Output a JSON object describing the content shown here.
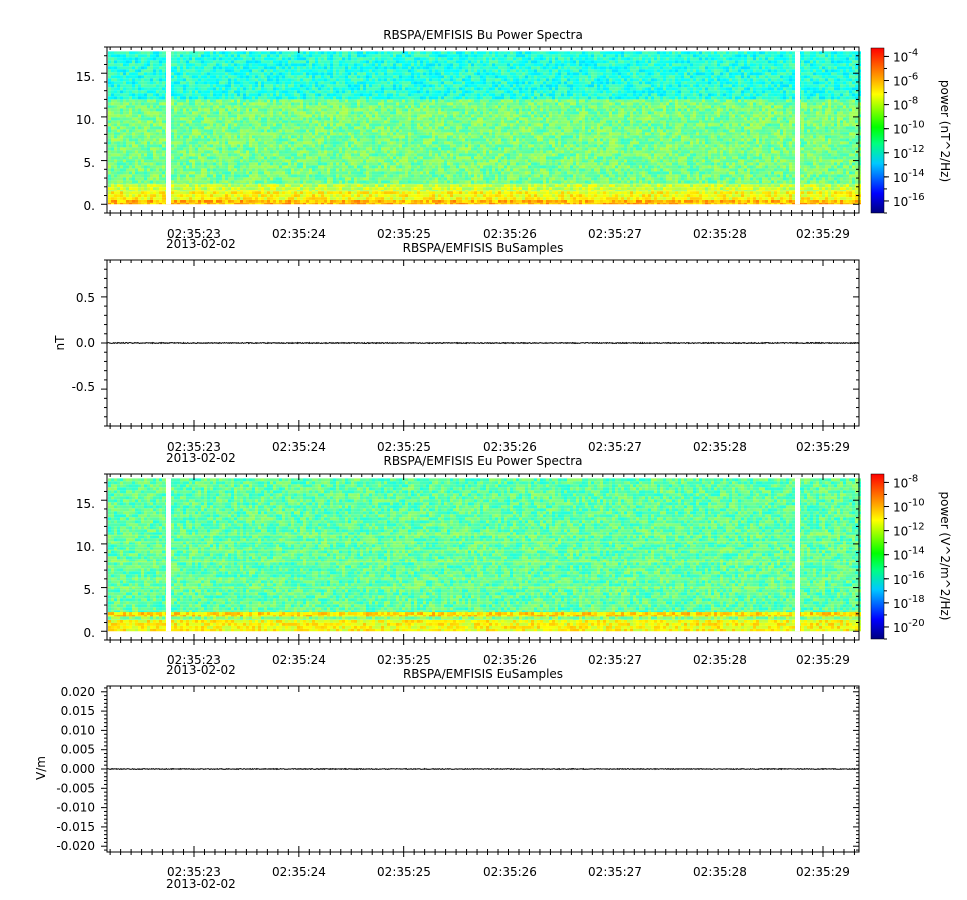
{
  "chart_data": [
    {
      "type": "heatmap",
      "title": "RBSPA/EMFISIS  Bu Power Spectra",
      "ylabel": "",
      "y_ticks": [
        "0.",
        "5.",
        "10.",
        "15."
      ],
      "y_tick_values": [
        0,
        5,
        10,
        15
      ],
      "ylim": [
        -1,
        18
      ],
      "x_ticks": [
        "02:35:23",
        "02:35:24",
        "02:35:25",
        "02:35:26",
        "02:35:27",
        "02:35:28",
        "02:35:29"
      ],
      "x_date": "2013-02-02",
      "colorbar": {
        "label": "power (nT^2/Hz)",
        "ticks": [
          {
            "base": "10",
            "exp": "-4"
          },
          {
            "base": "10",
            "exp": "-6"
          },
          {
            "base": "10",
            "exp": "-8"
          },
          {
            "base": "10",
            "exp": "-10"
          },
          {
            "base": "10",
            "exp": "-12"
          },
          {
            "base": "10",
            "exp": "-14"
          },
          {
            "base": "10",
            "exp": "-16"
          }
        ],
        "log_range": [
          -17,
          -3.3
        ]
      },
      "bands": [
        {
          "y_from": 0,
          "y_to": 0.5,
          "log_power": -7.5
        },
        {
          "y_from": 0.5,
          "y_to": 1.5,
          "log_power": -8.5
        },
        {
          "y_from": 1.5,
          "y_to": 2.3,
          "log_power": -9.2
        },
        {
          "y_from": 2.3,
          "y_to": 12,
          "log_power": -10.3
        },
        {
          "y_from": 12,
          "y_to": 17.5,
          "log_power": -11.4
        }
      ]
    },
    {
      "type": "line",
      "title": "RBSPA/EMFISIS  BuSamples",
      "ylabel": "nT",
      "y_ticks": [
        "-0.5",
        "0.0",
        "0.5"
      ],
      "y_tick_values": [
        -0.5,
        0,
        0.5
      ],
      "ylim": [
        -0.9,
        0.9
      ],
      "x_ticks": [
        "02:35:23",
        "02:35:24",
        "02:35:25",
        "02:35:26",
        "02:35:27",
        "02:35:28",
        "02:35:29"
      ],
      "x_date": "2013-02-02",
      "series": [
        {
          "values_approx": 0.0,
          "noise": 0.005
        }
      ]
    },
    {
      "type": "heatmap",
      "title": "RBSPA/EMFISIS  Eu Power Spectra",
      "ylabel": "",
      "y_ticks": [
        "0.",
        "5.",
        "10.",
        "15."
      ],
      "y_tick_values": [
        0,
        5,
        10,
        15
      ],
      "ylim": [
        -1,
        18
      ],
      "x_ticks": [
        "02:35:23",
        "02:35:24",
        "02:35:25",
        "02:35:26",
        "02:35:27",
        "02:35:28",
        "02:35:29"
      ],
      "x_date": "2013-02-02",
      "colorbar": {
        "label": "power (V^2/m^2/Hz)",
        "ticks": [
          {
            "base": "10",
            "exp": "-8"
          },
          {
            "base": "10",
            "exp": "-10"
          },
          {
            "base": "10",
            "exp": "-12"
          },
          {
            "base": "10",
            "exp": "-14"
          },
          {
            "base": "10",
            "exp": "-16"
          },
          {
            "base": "10",
            "exp": "-18"
          },
          {
            "base": "10",
            "exp": "-20"
          }
        ],
        "log_range": [
          -21,
          -7.3
        ]
      },
      "bands": [
        {
          "y_from": 0,
          "y_to": 1.3,
          "log_power": -12.5
        },
        {
          "y_from": 1.3,
          "y_to": 1.7,
          "log_power": -14.0
        },
        {
          "y_from": 1.7,
          "y_to": 2.2,
          "log_power": -12.0
        },
        {
          "y_from": 2.2,
          "y_to": 17.5,
          "log_power": -14.6
        }
      ]
    },
    {
      "type": "line",
      "title": "RBSPA/EMFISIS  EuSamples",
      "ylabel": "V/m",
      "y_ticks": [
        "-0.020",
        "-0.015",
        "-0.010",
        "-0.005",
        "0.000",
        "0.005",
        "0.010",
        "0.015",
        "0.020"
      ],
      "y_tick_values": [
        -0.02,
        -0.015,
        -0.01,
        -0.005,
        0.0,
        0.005,
        0.01,
        0.015,
        0.02
      ],
      "ylim": [
        -0.0215,
        0.0215
      ],
      "x_ticks": [
        "02:35:23",
        "02:35:24",
        "02:35:25",
        "02:35:26",
        "02:35:27",
        "02:35:28",
        "02:35:29"
      ],
      "x_date": "2013-02-02",
      "series": [
        {
          "values_approx": 0.0,
          "noise": 0.0001
        }
      ]
    }
  ],
  "colors": {
    "background": "#ffffff",
    "axis": "#000000",
    "gap": "#ffffff",
    "line": "#000000"
  }
}
